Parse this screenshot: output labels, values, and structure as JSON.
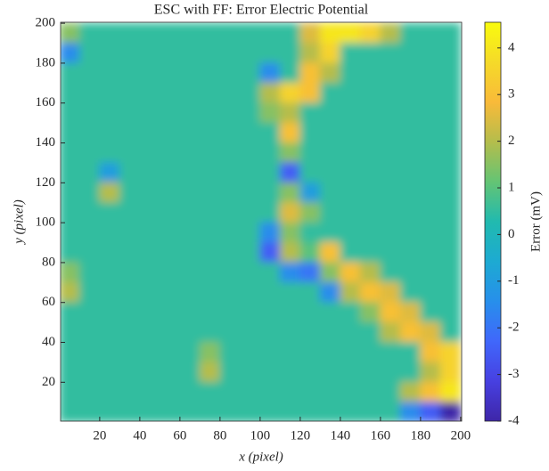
{
  "chart_data": {
    "type": "heatmap",
    "title": "ESC with FF: Error Electric Potential",
    "xlabel": "x (pixel)",
    "ylabel": "y (pixel)",
    "colorbar_label": "Error (mV)",
    "colormap": "parula",
    "x": [
      5,
      15,
      25,
      35,
      45,
      55,
      65,
      75,
      85,
      95,
      105,
      115,
      125,
      135,
      145,
      155,
      165,
      175,
      185,
      195
    ],
    "y": [
      195,
      185,
      175,
      165,
      155,
      145,
      135,
      125,
      115,
      105,
      95,
      85,
      75,
      65,
      55,
      45,
      35,
      25,
      15,
      5
    ],
    "z": [
      [
        1.5,
        0.5,
        0.5,
        0.5,
        0.5,
        0.5,
        0.5,
        0.5,
        0.5,
        0.5,
        0.5,
        0.5,
        2.5,
        4,
        4,
        3.5,
        2,
        0.5,
        0.5,
        0.5
      ],
      [
        -1.5,
        0.5,
        0.5,
        0.5,
        0.5,
        0.5,
        0.5,
        0.5,
        0.5,
        0.5,
        0.5,
        0.5,
        2,
        3.5,
        0.5,
        0.5,
        0.5,
        0.5,
        0.5,
        0.5
      ],
      [
        0.5,
        0.5,
        0.5,
        0.5,
        0.5,
        0.5,
        0.5,
        0.5,
        0.5,
        0.5,
        -1.5,
        0.5,
        3,
        2,
        0.5,
        0.5,
        0.5,
        0.5,
        0.5,
        0.5
      ],
      [
        0.5,
        0.5,
        0.5,
        0.5,
        0.5,
        0.5,
        0.5,
        0.5,
        0.5,
        0.5,
        2,
        3.5,
        3,
        0.5,
        0.5,
        0.5,
        0.5,
        0.5,
        0.5,
        0.5
      ],
      [
        0.5,
        0.5,
        0.5,
        0.5,
        0.5,
        0.5,
        0.5,
        0.5,
        0.5,
        0.5,
        1.5,
        2,
        0.5,
        0.5,
        0.5,
        0.5,
        0.5,
        0.5,
        0.5,
        0.5
      ],
      [
        0.5,
        0.5,
        0.5,
        0.5,
        0.5,
        0.5,
        0.5,
        0.5,
        0.5,
        0.5,
        0.5,
        3,
        0.5,
        0.5,
        0.5,
        0.5,
        0.5,
        0.5,
        0.5,
        0.5
      ],
      [
        0.5,
        0.5,
        0.5,
        0.5,
        0.5,
        0.5,
        0.5,
        0.5,
        0.5,
        0.5,
        0.5,
        1.5,
        0.5,
        0.5,
        0.5,
        0.5,
        0.5,
        0.5,
        0.5,
        0.5
      ],
      [
        0.5,
        0.5,
        -1,
        0.5,
        0.5,
        0.5,
        0.5,
        0.5,
        0.5,
        0.5,
        0.5,
        -2.5,
        0.5,
        0.5,
        0.5,
        0.5,
        0.5,
        0.5,
        0.5,
        0.5
      ],
      [
        0.5,
        0.5,
        2,
        0.5,
        0.5,
        0.5,
        0.5,
        0.5,
        0.5,
        0.5,
        0.5,
        1.5,
        -1,
        0.5,
        0.5,
        0.5,
        0.5,
        0.5,
        0.5,
        0.5
      ],
      [
        0.5,
        0.5,
        0.5,
        0.5,
        0.5,
        0.5,
        0.5,
        0.5,
        0.5,
        0.5,
        0.5,
        2.5,
        1.5,
        0.5,
        0.5,
        0.5,
        0.5,
        0.5,
        0.5,
        0.5
      ],
      [
        0.5,
        0.5,
        0.5,
        0.5,
        0.5,
        0.5,
        0.5,
        0.5,
        0.5,
        0.5,
        -1.5,
        1.5,
        0.5,
        0.5,
        0.5,
        0.5,
        0.5,
        0.5,
        0.5,
        0.5
      ],
      [
        0.5,
        0.5,
        0.5,
        0.5,
        0.5,
        0.5,
        0.5,
        0.5,
        0.5,
        0.5,
        -2.5,
        2,
        1,
        3,
        0.5,
        0.5,
        0.5,
        0.5,
        0.5,
        0.5
      ],
      [
        1.5,
        0.5,
        0.5,
        0.5,
        0.5,
        0.5,
        0.5,
        0.5,
        0.5,
        0.5,
        0.5,
        -1.5,
        -2,
        1.5,
        3,
        2,
        0.5,
        0.5,
        0.5,
        0.5
      ],
      [
        2,
        0.5,
        0.5,
        0.5,
        0.5,
        0.5,
        0.5,
        0.5,
        0.5,
        0.5,
        0.5,
        0.5,
        0.5,
        -1.5,
        2,
        3,
        2.5,
        0.5,
        0.5,
        0.5
      ],
      [
        0.5,
        0.5,
        0.5,
        0.5,
        0.5,
        0.5,
        0.5,
        0.5,
        0.5,
        0.5,
        0.5,
        0.5,
        0.5,
        0.5,
        0.5,
        1.5,
        3,
        2.5,
        0.5,
        0.5
      ],
      [
        0.5,
        0.5,
        0.5,
        0.5,
        0.5,
        0.5,
        0.5,
        0.5,
        0.5,
        0.5,
        0.5,
        0.5,
        0.5,
        0.5,
        0.5,
        0.5,
        2,
        3,
        2.5,
        0.5
      ],
      [
        0.5,
        0.5,
        0.5,
        0.5,
        0.5,
        0.5,
        0.5,
        1.5,
        0.5,
        0.5,
        0.5,
        0.5,
        0.5,
        0.5,
        0.5,
        0.5,
        0.5,
        0.5,
        3,
        3.5
      ],
      [
        0.5,
        0.5,
        0.5,
        0.5,
        0.5,
        0.5,
        0.5,
        2,
        0.5,
        0.5,
        0.5,
        0.5,
        0.5,
        0.5,
        0.5,
        0.5,
        0.5,
        0.5,
        2,
        3.5
      ],
      [
        0.5,
        0.5,
        0.5,
        0.5,
        0.5,
        0.5,
        0.5,
        0.5,
        0.5,
        0.5,
        0.5,
        0.5,
        0.5,
        0.5,
        0.5,
        0.5,
        0.5,
        2,
        3,
        4
      ],
      [
        0.5,
        0.5,
        0.5,
        0.5,
        0.5,
        0.5,
        0.5,
        0.5,
        0.5,
        0.5,
        0.5,
        0.5,
        0.5,
        0.5,
        0.5,
        0.5,
        0.5,
        -1.5,
        -2.5,
        -4
      ]
    ],
    "xlim": [
      0.5,
      200.5
    ],
    "ylim": [
      0.5,
      200.5
    ],
    "xticks": [
      20,
      40,
      60,
      80,
      100,
      120,
      140,
      160,
      180,
      200
    ],
    "yticks": [
      20,
      40,
      60,
      80,
      100,
      120,
      140,
      160,
      180,
      200
    ],
    "clim": [
      -4,
      4.55
    ],
    "cticks": [
      -4,
      -3,
      -2,
      -1,
      0,
      1,
      2,
      3,
      4
    ]
  }
}
